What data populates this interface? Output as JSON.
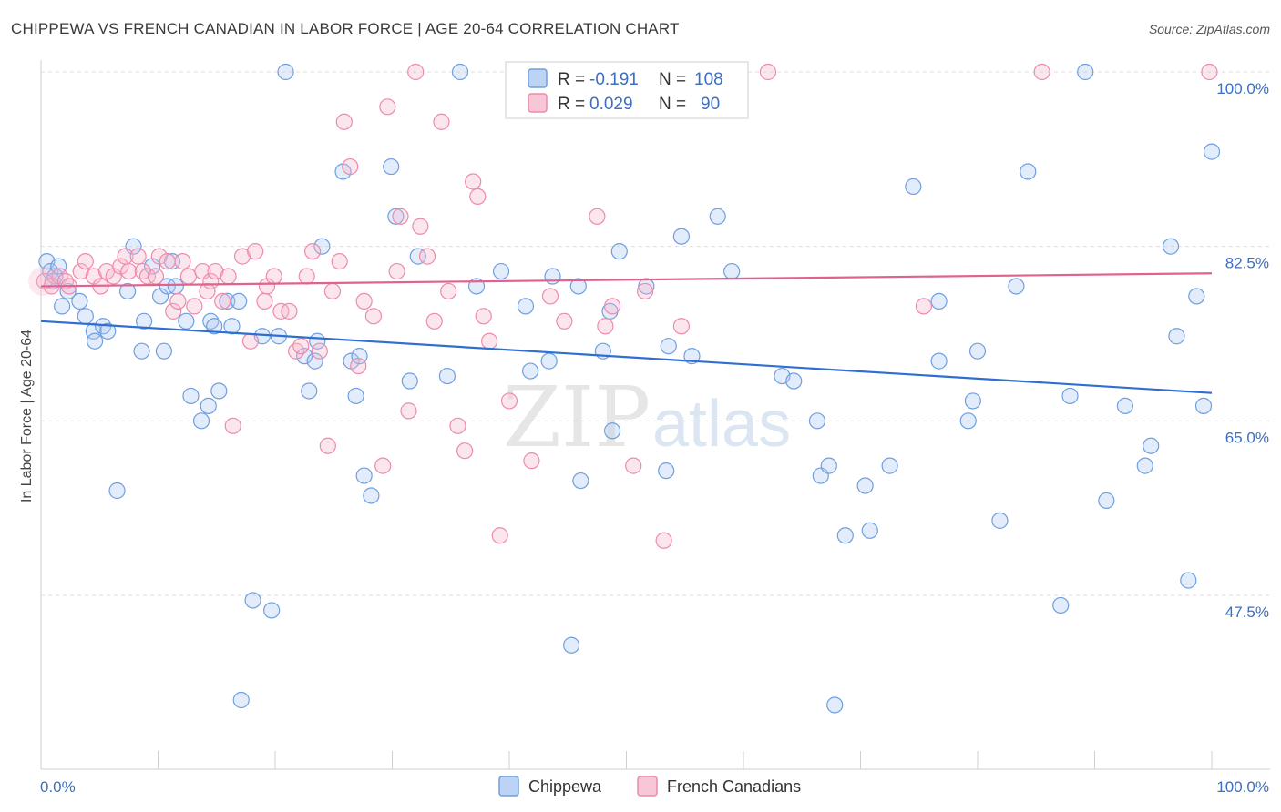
{
  "title": "CHIPPEWA VS FRENCH CANADIAN IN LABOR FORCE | AGE 20-64 CORRELATION CHART",
  "source": "Source: ZipAtlas.com",
  "watermark": {
    "zip": "ZIP",
    "atlas": "atlas"
  },
  "legend": {
    "rows": [
      {
        "r_label": "R =",
        "r_value": "-0.191",
        "n_label": "N =",
        "n_value": "108"
      },
      {
        "r_label": "R =",
        "r_value": "0.029",
        "n_label": "N =",
        "n_value": "90"
      }
    ]
  },
  "bottom_legend": [
    "Chippewa",
    "French Canadians"
  ],
  "chart_data": {
    "type": "scatter",
    "title": "CHIPPEWA VS FRENCH CANADIAN IN LABOR FORCE | AGE 20-64 CORRELATION CHART",
    "xlabel": "",
    "ylabel": "In Labor Force | Age 20-64",
    "xlim": [
      0,
      100
    ],
    "ylim": [
      32.5,
      102
    ],
    "x_tick_labels": [
      "0.0%",
      "100.0%"
    ],
    "y_tick_labels": [
      "100.0%",
      "82.5%",
      "65.0%",
      "47.5%"
    ],
    "y_ticks": [
      100,
      82.5,
      65,
      47.5
    ],
    "grid": true,
    "colors": {
      "Chippewa": "#6f9fe0",
      "French Canadians": "#ee8aab",
      "chippewa_line": "#2f6fd1",
      "french_line": "#e0628f"
    },
    "series": [
      {
        "name": "Chippewa",
        "trend": {
          "x": [
            0,
            100
          ],
          "y": [
            75.0,
            67.8
          ]
        },
        "points": [
          [
            0.5,
            81
          ],
          [
            0.8,
            80
          ],
          [
            1,
            79
          ],
          [
            1.2,
            79.5
          ],
          [
            1.5,
            80.5
          ],
          [
            1.8,
            76.5
          ],
          [
            2.3,
            78
          ],
          [
            3.3,
            77
          ],
          [
            3.8,
            75.5
          ],
          [
            4.5,
            74
          ],
          [
            4.6,
            73
          ],
          [
            5.3,
            74.5
          ],
          [
            5.7,
            74
          ],
          [
            6.5,
            58
          ],
          [
            7.4,
            78
          ],
          [
            7.9,
            82.5
          ],
          [
            8.6,
            72
          ],
          [
            8.8,
            75
          ],
          [
            9.5,
            80.5
          ],
          [
            10.2,
            77.5
          ],
          [
            10.5,
            72
          ],
          [
            10.8,
            78.5
          ],
          [
            11.2,
            81
          ],
          [
            11.5,
            78.5
          ],
          [
            12.4,
            75
          ],
          [
            12.8,
            67.5
          ],
          [
            13.7,
            65
          ],
          [
            14.5,
            75
          ],
          [
            14.8,
            74.5
          ],
          [
            14.3,
            66.5
          ],
          [
            15.2,
            68
          ],
          [
            15.9,
            77
          ],
          [
            16.3,
            74.5
          ],
          [
            16.9,
            77
          ],
          [
            17.1,
            37
          ],
          [
            18.1,
            47
          ],
          [
            18.9,
            73.5
          ],
          [
            19.7,
            46
          ],
          [
            20.3,
            73.5
          ],
          [
            20.9,
            100
          ],
          [
            22.5,
            71.5
          ],
          [
            22.9,
            68
          ],
          [
            23.4,
            71
          ],
          [
            23.6,
            73
          ],
          [
            24,
            82.5
          ],
          [
            25.8,
            90
          ],
          [
            26.5,
            71
          ],
          [
            26.9,
            67.5
          ],
          [
            27.2,
            71.5
          ],
          [
            27.6,
            59.5
          ],
          [
            28.2,
            57.5
          ],
          [
            29.9,
            90.5
          ],
          [
            30.3,
            85.5
          ],
          [
            31.5,
            69
          ],
          [
            32.2,
            81.5
          ],
          [
            34.7,
            69.5
          ],
          [
            35.8,
            100
          ],
          [
            37.2,
            78.5
          ],
          [
            39.3,
            80
          ],
          [
            41.4,
            76.5
          ],
          [
            41.8,
            70
          ],
          [
            43.4,
            71
          ],
          [
            43.7,
            79.5
          ],
          [
            45.3,
            42.5
          ],
          [
            45.9,
            78.5
          ],
          [
            46.1,
            59
          ],
          [
            48,
            72
          ],
          [
            48.6,
            76
          ],
          [
            48.8,
            64
          ],
          [
            49.4,
            82
          ],
          [
            51.7,
            78.5
          ],
          [
            53.4,
            60
          ],
          [
            53.6,
            72.5
          ],
          [
            54.7,
            83.5
          ],
          [
            55.6,
            71.5
          ],
          [
            57.8,
            85.5
          ],
          [
            59,
            80
          ],
          [
            63.3,
            69.5
          ],
          [
            64.3,
            69
          ],
          [
            66.3,
            65
          ],
          [
            66.6,
            59.5
          ],
          [
            67.3,
            60.5
          ],
          [
            67.8,
            36.5
          ],
          [
            68.7,
            53.5
          ],
          [
            70.4,
            58.5
          ],
          [
            70.8,
            54
          ],
          [
            72.5,
            60.5
          ],
          [
            74.5,
            88.5
          ],
          [
            76.7,
            77
          ],
          [
            76.7,
            71
          ],
          [
            79.2,
            65
          ],
          [
            79.6,
            67
          ],
          [
            80,
            72
          ],
          [
            81.9,
            55
          ],
          [
            83.3,
            78.5
          ],
          [
            84.3,
            90
          ],
          [
            87.1,
            46.5
          ],
          [
            87.9,
            67.5
          ],
          [
            89.2,
            100
          ],
          [
            91,
            57
          ],
          [
            92.6,
            66.5
          ],
          [
            94.3,
            60.5
          ],
          [
            94.8,
            62.5
          ],
          [
            96.5,
            82.5
          ],
          [
            97,
            73.5
          ],
          [
            98,
            49
          ],
          [
            98.7,
            77.5
          ],
          [
            99.3,
            66.5
          ],
          [
            100,
            92
          ]
        ]
      },
      {
        "name": "French Canadians",
        "trend": {
          "x": [
            0,
            100
          ],
          "y": [
            78.5,
            79.8
          ]
        },
        "points": [
          [
            0.3,
            79
          ],
          [
            0.9,
            78.5
          ],
          [
            1.6,
            79.5
          ],
          [
            2.1,
            79
          ],
          [
            2.4,
            78.5
          ],
          [
            3.4,
            80
          ],
          [
            3.8,
            81
          ],
          [
            4.5,
            79.5
          ],
          [
            5.1,
            78.5
          ],
          [
            5.6,
            80
          ],
          [
            6.2,
            79.5
          ],
          [
            6.8,
            80.5
          ],
          [
            7.2,
            81.5
          ],
          [
            7.5,
            80
          ],
          [
            8.3,
            81.5
          ],
          [
            8.7,
            80
          ],
          [
            9.1,
            79.5
          ],
          [
            9.8,
            79.5
          ],
          [
            10.1,
            81.5
          ],
          [
            10.8,
            81
          ],
          [
            11.3,
            76
          ],
          [
            11.7,
            77
          ],
          [
            12.1,
            81
          ],
          [
            12.6,
            79.5
          ],
          [
            13.1,
            76.5
          ],
          [
            13.8,
            80
          ],
          [
            14.2,
            78
          ],
          [
            14.5,
            79
          ],
          [
            14.9,
            80
          ],
          [
            15.5,
            77
          ],
          [
            16,
            79.5
          ],
          [
            16.4,
            64.5
          ],
          [
            17.2,
            81.5
          ],
          [
            17.9,
            73
          ],
          [
            18.3,
            82
          ],
          [
            19.1,
            77
          ],
          [
            19.3,
            78.5
          ],
          [
            19.9,
            79.5
          ],
          [
            20.5,
            76
          ],
          [
            21.2,
            76
          ],
          [
            21.8,
            72
          ],
          [
            22.2,
            72.5
          ],
          [
            22.7,
            79.5
          ],
          [
            23.2,
            82
          ],
          [
            23.8,
            72
          ],
          [
            24.5,
            62.5
          ],
          [
            24.9,
            78
          ],
          [
            25.5,
            81
          ],
          [
            25.9,
            95
          ],
          [
            26.4,
            90.5
          ],
          [
            27.1,
            70.5
          ],
          [
            27.6,
            77
          ],
          [
            28.4,
            75.5
          ],
          [
            29.2,
            60.5
          ],
          [
            29.6,
            96.5
          ],
          [
            30.4,
            80
          ],
          [
            30.7,
            85.5
          ],
          [
            31.4,
            66
          ],
          [
            32,
            100
          ],
          [
            32.4,
            84.5
          ],
          [
            33,
            81.5
          ],
          [
            33.6,
            75
          ],
          [
            34.2,
            95
          ],
          [
            34.8,
            78
          ],
          [
            35.6,
            64.5
          ],
          [
            36.2,
            62
          ],
          [
            36.9,
            89
          ],
          [
            37.3,
            87.5
          ],
          [
            37.8,
            75.5
          ],
          [
            38.3,
            73
          ],
          [
            39.2,
            53.5
          ],
          [
            40,
            67
          ],
          [
            41.9,
            61
          ],
          [
            43.5,
            77.5
          ],
          [
            44.7,
            75
          ],
          [
            47.5,
            85.5
          ],
          [
            48.2,
            74.5
          ],
          [
            48.8,
            76.5
          ],
          [
            50.6,
            60.5
          ],
          [
            51.6,
            78
          ],
          [
            53.2,
            53
          ],
          [
            54.7,
            74.5
          ],
          [
            56.5,
            100
          ],
          [
            62.1,
            100
          ],
          [
            75.4,
            76.5
          ],
          [
            85.5,
            100
          ],
          [
            99.8,
            100
          ]
        ]
      }
    ]
  }
}
